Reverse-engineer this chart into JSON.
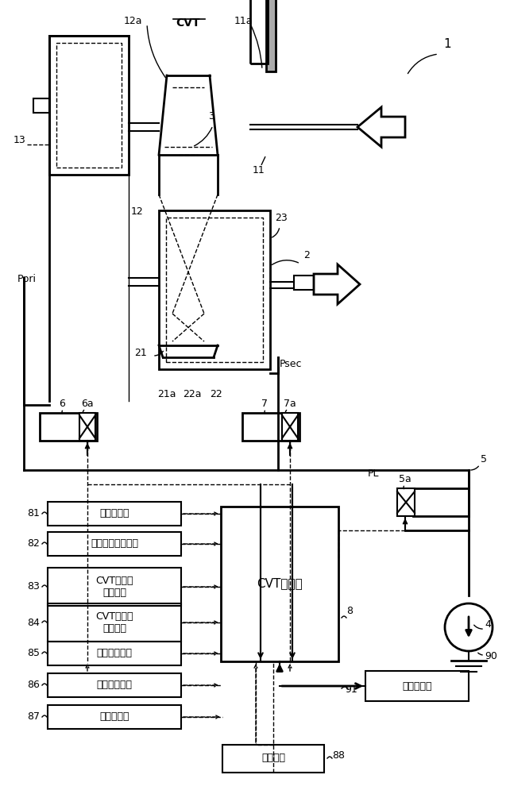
{
  "bg_color": "#ffffff",
  "lc": "#000000",
  "sensors": [
    {
      "label": "车速传感器",
      "num": "81",
      "lines": 1
    },
    {
      "label": "加速器开度传感器",
      "num": "82",
      "lines": 1
    },
    {
      "label": "CVT输入转\n速传感器",
      "num": "83",
      "lines": 2
    },
    {
      "label": "CVT输出转\n速传感器",
      "num": "84",
      "lines": 2
    },
    {
      "label": "初级压传感器",
      "num": "85",
      "lines": 1
    },
    {
      "label": "次级压传感器",
      "num": "86",
      "lines": 1
    },
    {
      "label": "油温传感器",
      "num": "87",
      "lines": 1
    }
  ],
  "cvt_controller_label": "CVT控制器",
  "vehicle_controller_label": "车载控制器",
  "breaker_label": "断路开关",
  "cvt_label": "CVT"
}
